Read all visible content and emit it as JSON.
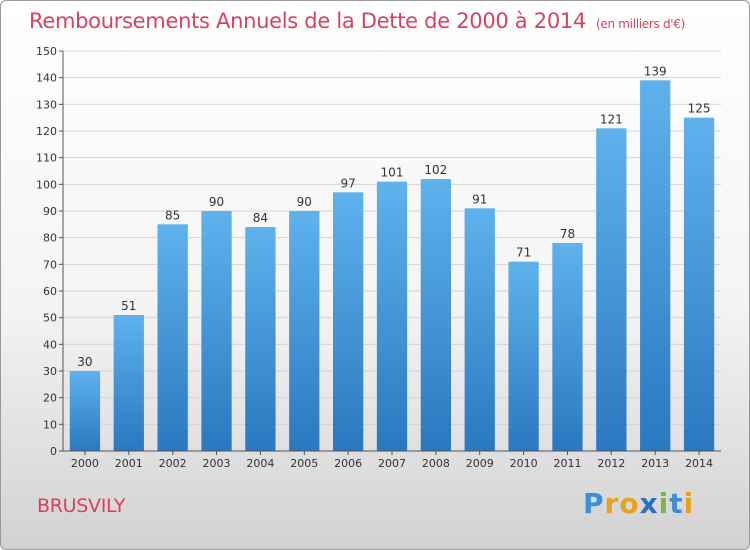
{
  "title": "Remboursements Annuels de la Dette de 2000 à 2014",
  "unit": "(en milliers d'€)",
  "commune": "BRUSVILY",
  "logo": {
    "text": "Proxiti",
    "letter_colors": [
      "#3a8fd8",
      "#e8a21a",
      "#e8a21a",
      "#2b6fc7",
      "#7ab648",
      "#3a8fd8",
      "#e8a21a"
    ]
  },
  "colors": {
    "bar": "#3a91dc",
    "bar_light": "#5aaee8",
    "bar_dark": "#2a78c0",
    "title": "#d9415f",
    "grid": "#cfcfcf"
  },
  "chart_data": {
    "type": "bar",
    "title": "Remboursements Annuels de la Dette de 2000 à 2014",
    "categories": [
      "2000",
      "2001",
      "2002",
      "2003",
      "2004",
      "2005",
      "2006",
      "2007",
      "2008",
      "2009",
      "2010",
      "2011",
      "2012",
      "2013",
      "2014"
    ],
    "values": [
      30,
      51,
      85,
      90,
      84,
      90,
      97,
      101,
      102,
      91,
      71,
      78,
      121,
      139,
      125
    ],
    "ylim": [
      0,
      150
    ],
    "yticks": [
      0,
      10,
      20,
      30,
      40,
      50,
      60,
      70,
      80,
      90,
      100,
      110,
      120,
      130,
      140,
      150
    ],
    "grid": true
  }
}
